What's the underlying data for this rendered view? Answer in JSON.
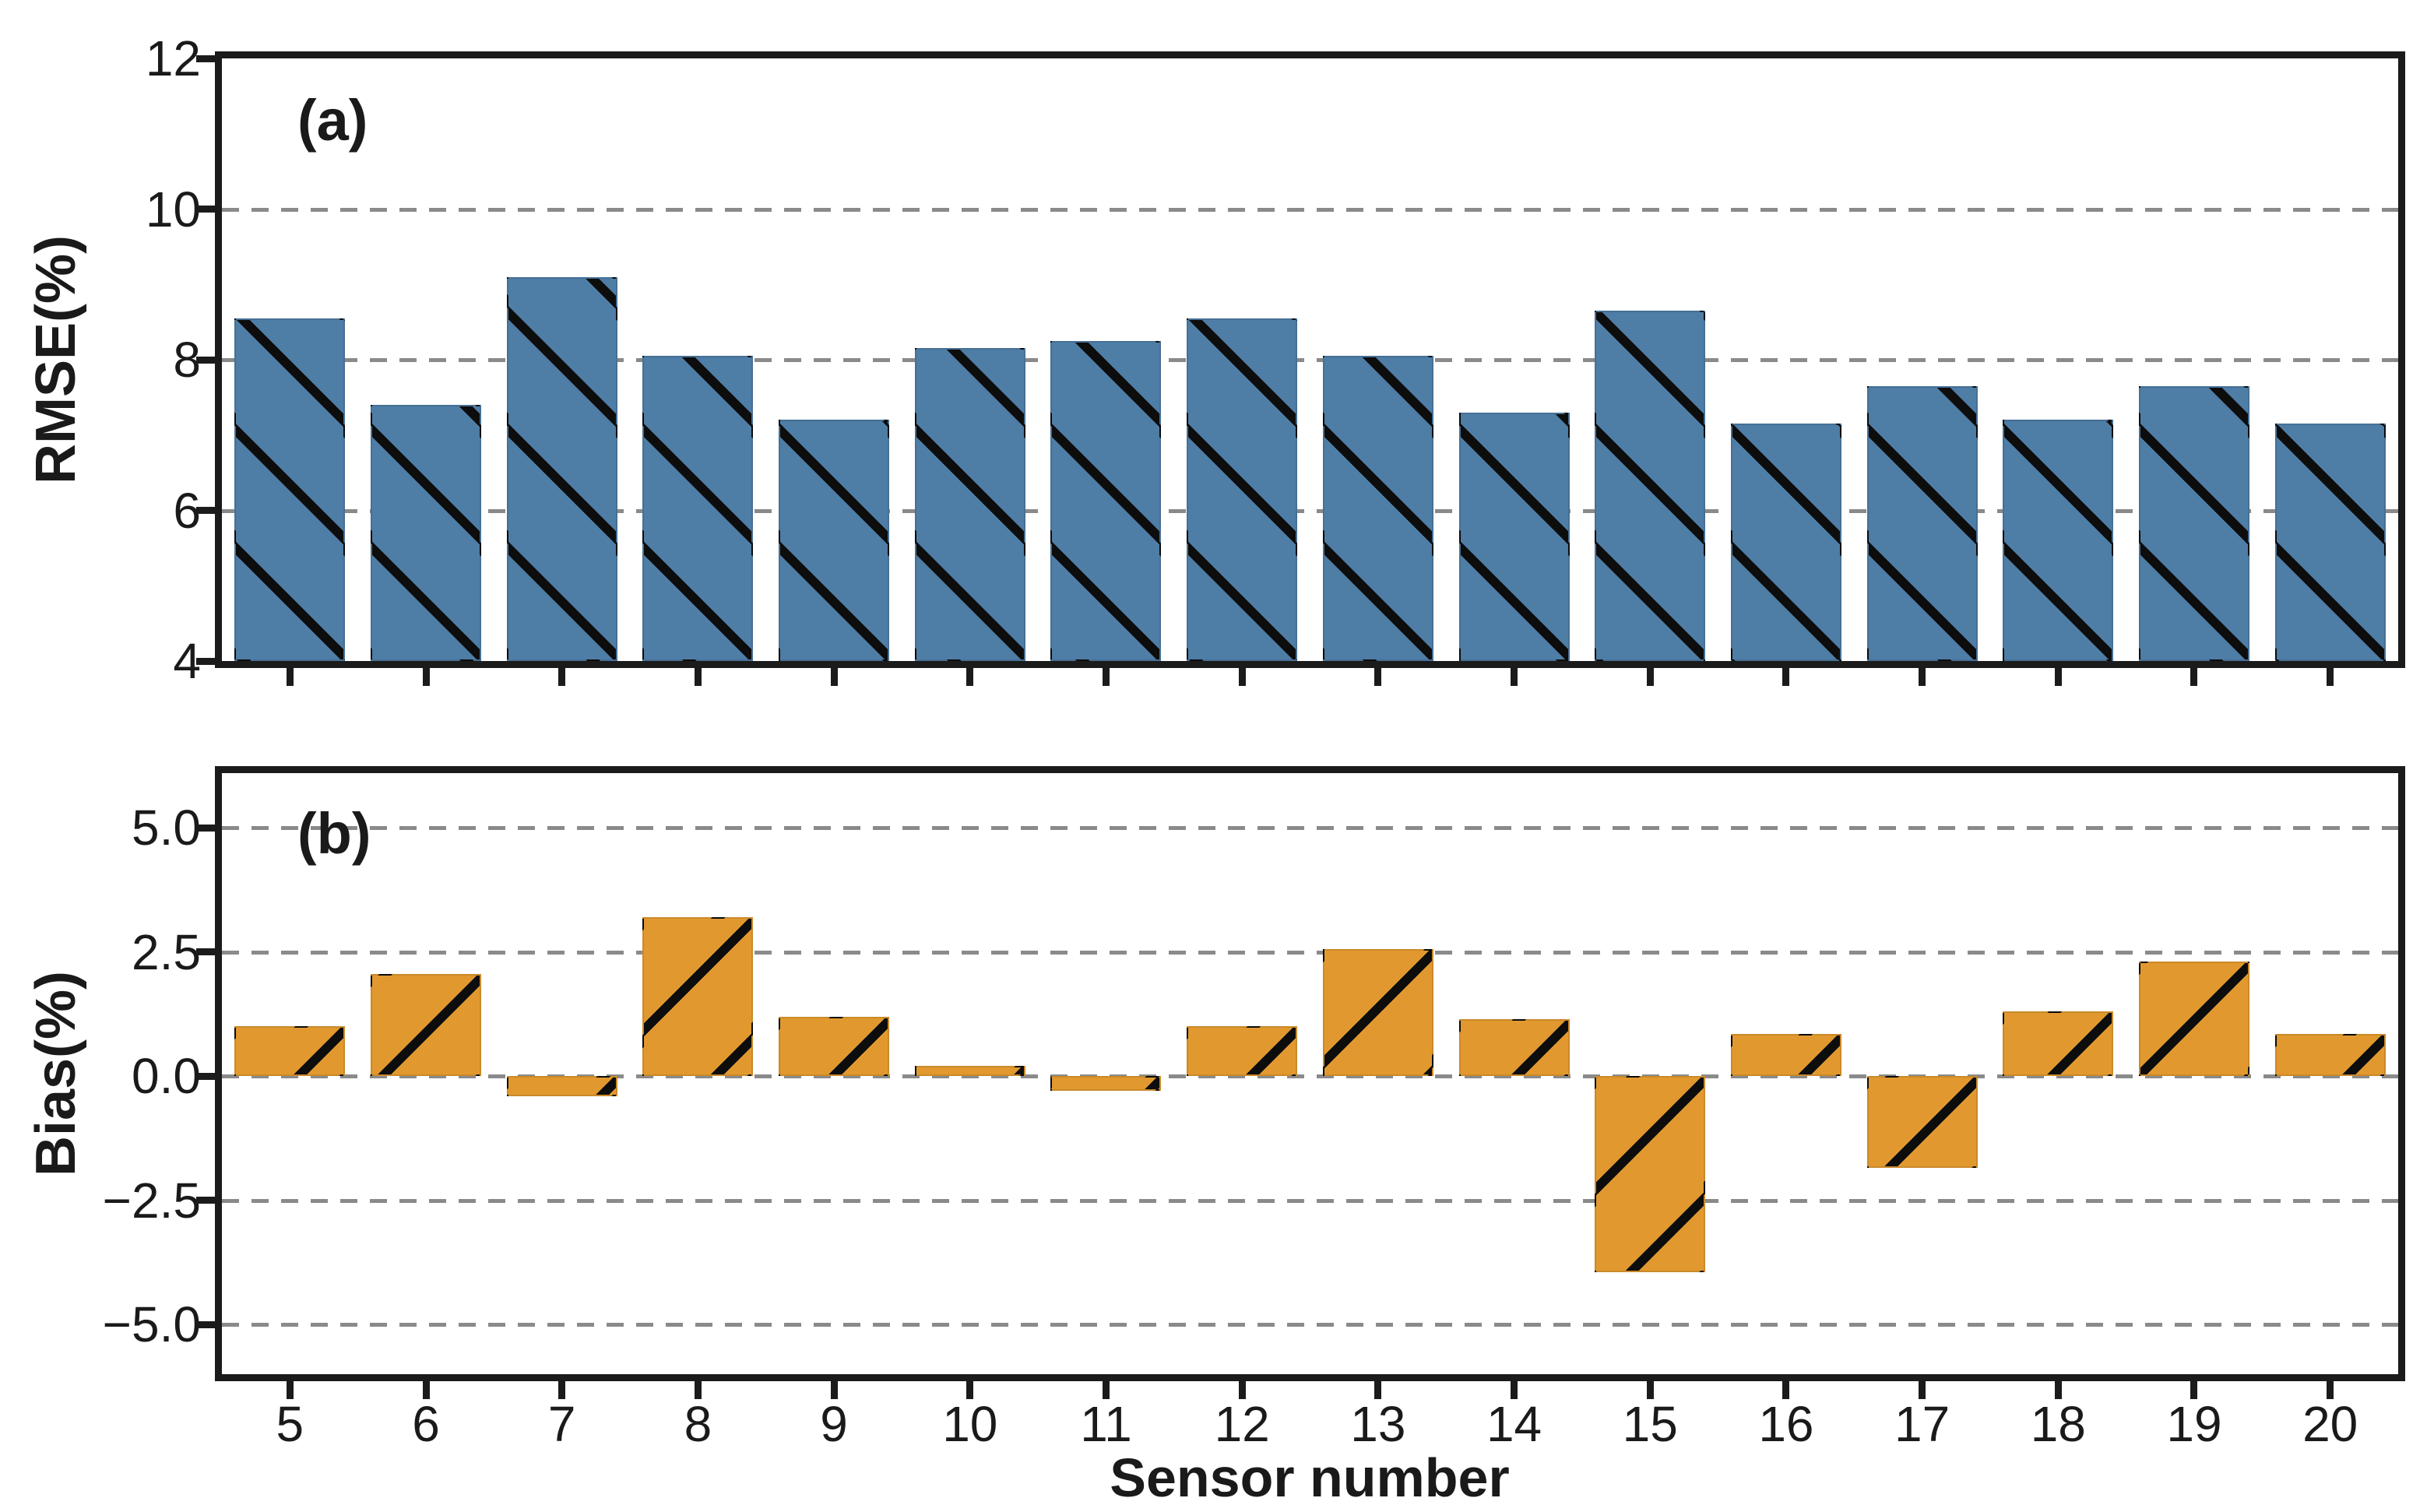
{
  "figure": {
    "xlabel": "Sensor number",
    "x_tick_labels": [
      "5",
      "6",
      "7",
      "8",
      "9",
      "10",
      "11",
      "12",
      "13",
      "14",
      "15",
      "16",
      "17",
      "18",
      "19",
      "20"
    ]
  },
  "colors": {
    "rmse_bar": "#4e7da6",
    "bias_bar": "#e1992f",
    "hatch": "#0d0d0d",
    "gridline": "#8a8a8a",
    "frame": "#1b1b1b",
    "text": "#1a1a1a",
    "background": "#ffffff"
  },
  "chart_data": [
    {
      "type": "bar",
      "panel": "a",
      "panel_label": "(a)",
      "ylabel": "RMSE(%)",
      "xlabel": "Sensor number",
      "categories": [
        "5",
        "6",
        "7",
        "8",
        "9",
        "10",
        "11",
        "12",
        "13",
        "14",
        "15",
        "16",
        "17",
        "18",
        "19",
        "20"
      ],
      "values": [
        8.55,
        7.4,
        9.1,
        8.05,
        7.2,
        8.15,
        8.25,
        8.55,
        8.05,
        7.3,
        8.65,
        7.15,
        7.65,
        7.2,
        7.65,
        7.15
      ],
      "ylim": [
        4,
        12
      ],
      "baseline": 4,
      "yticks": [
        12,
        10,
        8,
        6,
        4
      ],
      "ytick_labels": [
        "12",
        "10",
        "8",
        "6",
        "4"
      ],
      "gridlines": [
        10,
        8,
        6
      ],
      "grid_style": "dashed",
      "bar_color": "#4e7da6",
      "hatch_direction": "backslash",
      "legend": "none"
    },
    {
      "type": "bar",
      "panel": "b",
      "panel_label": "(b)",
      "ylabel": "Bias(%)",
      "xlabel": "Sensor number",
      "categories": [
        "5",
        "6",
        "7",
        "8",
        "9",
        "10",
        "11",
        "12",
        "13",
        "14",
        "15",
        "16",
        "17",
        "18",
        "19",
        "20"
      ],
      "values": [
        1.0,
        2.05,
        -0.4,
        3.2,
        1.2,
        0.2,
        -0.3,
        1.0,
        2.55,
        1.15,
        -3.95,
        0.85,
        -1.85,
        1.3,
        2.3,
        0.85
      ],
      "ylim": [
        -6,
        6.1
      ],
      "baseline": 0,
      "yticks": [
        5.0,
        2.5,
        0.0,
        -2.5,
        -5.0
      ],
      "ytick_labels": [
        "5.0",
        "2.5",
        "0.0",
        "−2.5",
        "−5.0"
      ],
      "gridlines": [
        5.0,
        2.5,
        0.0,
        -2.5,
        -5.0
      ],
      "grid_style": "dashed",
      "bar_color": "#e1992f",
      "hatch_direction": "slash",
      "legend": "none"
    }
  ]
}
